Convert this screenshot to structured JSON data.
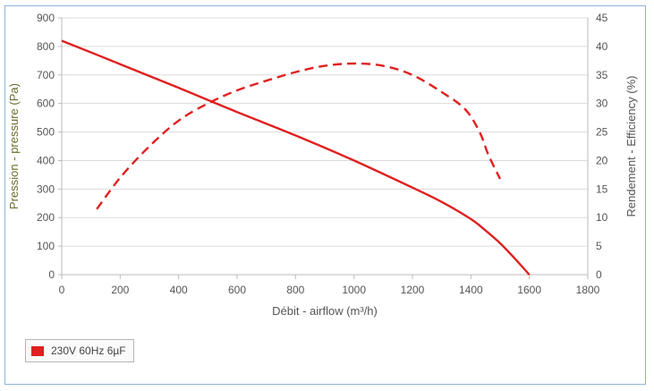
{
  "chart_data": {
    "type": "line",
    "xlabel": "Débit - airflow (m³/h)",
    "ylabel": "Pression - pressure (Pa)",
    "y2label": "Rendement - Efficiency (%)",
    "xlim": [
      0,
      1800
    ],
    "ylim": [
      0,
      900
    ],
    "y2lim": [
      0,
      45
    ],
    "x_ticks": [
      "0",
      "200",
      "400",
      "600",
      "800",
      "1000",
      "1200",
      "1400",
      "1600",
      "1800"
    ],
    "y_ticks": [
      "0",
      "100",
      "200",
      "300",
      "400",
      "500",
      "600",
      "700",
      "800",
      "900"
    ],
    "y2_ticks": [
      "0",
      "5",
      "10",
      "15",
      "20",
      "25",
      "30",
      "35",
      "40",
      "45"
    ],
    "grid": true,
    "legend": {
      "position": "bottom-left",
      "entries": [
        "230V 60Hz 6µF"
      ]
    },
    "series": [
      {
        "name": "230V 60Hz 6µF",
        "axis": "left",
        "style": "solid",
        "color": "#e02020",
        "x": [
          0,
          200,
          400,
          600,
          800,
          1000,
          1200,
          1300,
          1400,
          1450,
          1500,
          1550,
          1600
        ],
        "y": [
          820,
          738,
          655,
          570,
          488,
          400,
          305,
          255,
          195,
          155,
          110,
          57,
          0
        ]
      },
      {
        "name": "",
        "axis": "right",
        "style": "dashed",
        "color": "#e02020",
        "x": [
          120,
          200,
          300,
          400,
          500,
          600,
          700,
          800,
          900,
          1000,
          1100,
          1200,
          1300,
          1380,
          1430,
          1460,
          1500
        ],
        "y": [
          11.5,
          17,
          22.5,
          27,
          30,
          32.3,
          34,
          35.5,
          36.6,
          37,
          36.6,
          35,
          32,
          29,
          25,
          21,
          16.8
        ]
      }
    ]
  }
}
